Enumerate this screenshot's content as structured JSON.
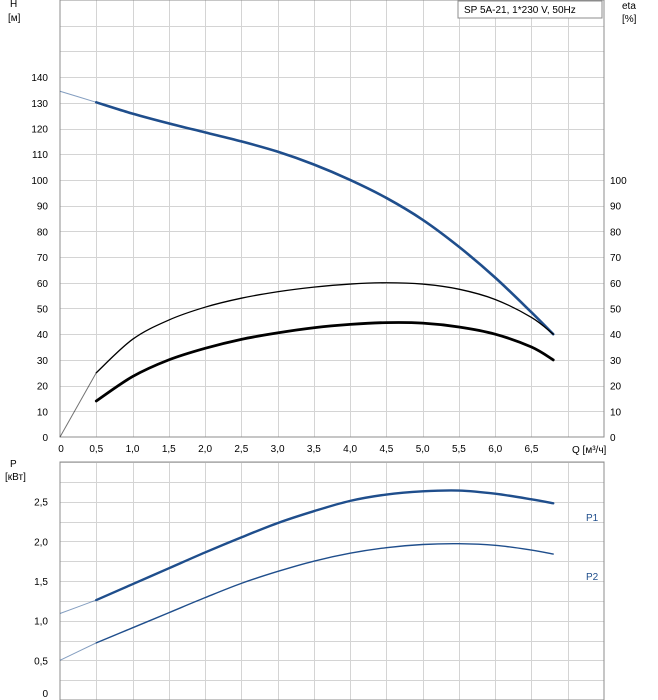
{
  "chart_data": [
    {
      "type": "line",
      "title": "SP 5A-21, 1*230 V, 50Hz",
      "xlabel": "Q [м³/ч]",
      "ylabel_left": [
        "H",
        "[м]"
      ],
      "ylabel_right": [
        "eta",
        "[%]"
      ],
      "xlim": [
        0,
        7.5
      ],
      "ylim": [
        0,
        170
      ],
      "xticks": [
        "0",
        "0,5",
        "1,0",
        "1,5",
        "2,0",
        "2,5",
        "3,0",
        "3,5",
        "4,0",
        "4,5",
        "5,0",
        "5,5",
        "6,0",
        "6,5"
      ],
      "yticks_left": [
        "0",
        "10",
        "20",
        "30",
        "40",
        "50",
        "60",
        "70",
        "80",
        "90",
        "100",
        "110",
        "120",
        "130",
        "140"
      ],
      "yticks_right": [
        "0",
        "10",
        "20",
        "30",
        "40",
        "50",
        "60",
        "70",
        "80",
        "90",
        "100"
      ],
      "grid": true,
      "series": [
        {
          "color": "#1f4e8c",
          "x": [
            0.0,
            0.5,
            1.0,
            1.5,
            2.0,
            2.5,
            3.0,
            3.5,
            4.0,
            4.5,
            5.0,
            5.5,
            6.0,
            6.5,
            6.8
          ],
          "y": [
            134.5,
            130.2,
            125.8,
            122.0,
            118.5,
            115.0,
            111.0,
            106.0,
            100.0,
            93.0,
            84.5,
            74.0,
            62.0,
            48.5,
            40.0
          ]
        },
        {
          "color": "#000000",
          "x": [
            0.0,
            0.5,
            1.0,
            1.5,
            2.0,
            2.5,
            3.0,
            3.5,
            4.0,
            4.5,
            5.0,
            5.5,
            6.0,
            6.5,
            6.8
          ],
          "y": [
            0.0,
            25.0,
            38.0,
            45.5,
            50.5,
            54.0,
            56.5,
            58.3,
            59.5,
            60.0,
            59.5,
            57.5,
            53.5,
            46.5,
            40.0
          ]
        },
        {
          "color": "#000000",
          "x": [
            0.5,
            1.0,
            1.5,
            2.0,
            2.5,
            3.0,
            3.5,
            4.0,
            4.5,
            5.0,
            5.5,
            6.0,
            6.5,
            6.8
          ],
          "y": [
            14.0,
            23.5,
            30.0,
            34.5,
            38.0,
            40.5,
            42.5,
            43.8,
            44.5,
            44.3,
            42.8,
            40.0,
            35.0,
            30.0
          ]
        }
      ]
    },
    {
      "type": "line",
      "ylabel": [
        "P",
        "[кВт]"
      ],
      "xlim": [
        0,
        7.5
      ],
      "ylim": [
        0,
        3.0
      ],
      "yticks": [
        "0",
        "0,5",
        "1,0",
        "1,5",
        "2,0",
        "2,5"
      ],
      "grid": true,
      "series": [
        {
          "name": "P1",
          "color": "#1f4e8c",
          "x": [
            0.0,
            0.5,
            1.0,
            1.5,
            2.0,
            2.5,
            3.0,
            3.5,
            4.0,
            4.5,
            5.0,
            5.5,
            6.0,
            6.5,
            6.8
          ],
          "y": [
            1.09,
            1.26,
            1.46,
            1.66,
            1.86,
            2.05,
            2.23,
            2.38,
            2.51,
            2.59,
            2.63,
            2.64,
            2.6,
            2.53,
            2.48
          ]
        },
        {
          "name": "P2",
          "color": "#1f4e8c",
          "x": [
            0.0,
            0.5,
            1.0,
            1.5,
            2.0,
            2.5,
            3.0,
            3.5,
            4.0,
            4.5,
            5.0,
            5.5,
            6.0,
            6.5,
            6.8
          ],
          "y": [
            0.5,
            0.72,
            0.91,
            1.1,
            1.29,
            1.47,
            1.62,
            1.75,
            1.85,
            1.92,
            1.96,
            1.97,
            1.95,
            1.89,
            1.84
          ]
        }
      ]
    }
  ]
}
